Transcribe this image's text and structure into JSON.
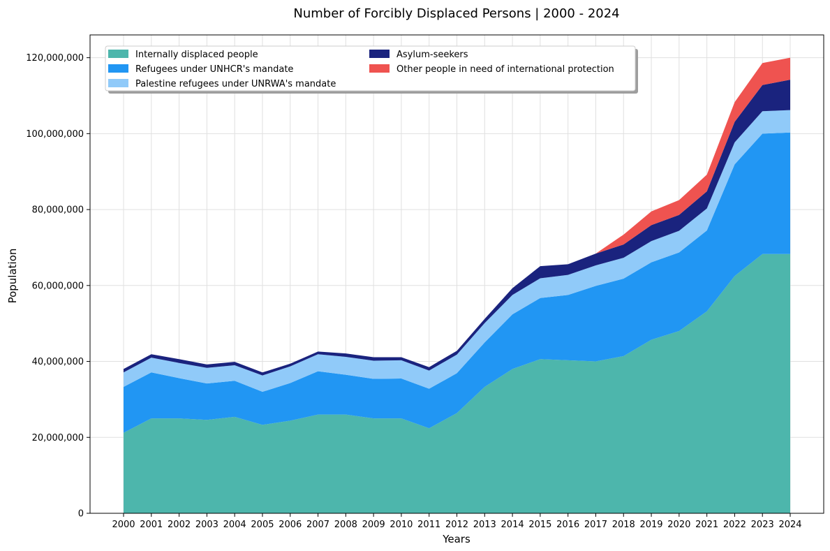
{
  "chart_data": {
    "type": "area",
    "stacked": true,
    "title": "Number of Forcibly Displaced Persons | 2000 - 2024",
    "xlabel": "Years",
    "ylabel": "Population",
    "ylim": [
      0,
      126000000
    ],
    "yticks": [
      0,
      20000000,
      40000000,
      60000000,
      80000000,
      100000000,
      120000000
    ],
    "ytick_labels": [
      "0",
      "20,000,000",
      "40,000,000",
      "60,000,000",
      "80,000,000",
      "100,000,000",
      "120,000,000"
    ],
    "grid": true,
    "legend_position": "top-left",
    "x": [
      "2000",
      "2001",
      "2002",
      "2003",
      "2004",
      "2005",
      "2006",
      "2007",
      "2008",
      "2009",
      "2010",
      "2011",
      "2012",
      "2013",
      "2014",
      "2015",
      "2016",
      "2017",
      "2018",
      "2019",
      "2020",
      "2021",
      "2022",
      "2023",
      "2024"
    ],
    "series": [
      {
        "name": "Internally displaced people",
        "color": "#4db6ac",
        "values": [
          21200000,
          25000000,
          25000000,
          24600000,
          25400000,
          23300000,
          24400000,
          26000000,
          26000000,
          25000000,
          25000000,
          22400000,
          26400000,
          33300000,
          38000000,
          40600000,
          40300000,
          40000000,
          41400000,
          45700000,
          48000000,
          53200000,
          62500000,
          68300000,
          68300000
        ]
      },
      {
        "name": "Refugees under UNHCR's mandate",
        "color": "#2196f3",
        "values": [
          12100000,
          12100000,
          10600000,
          9600000,
          9500000,
          8700000,
          9900000,
          11400000,
          10500000,
          10400000,
          10500000,
          10400000,
          10500000,
          11700000,
          14400000,
          16100000,
          17200000,
          19900000,
          20400000,
          20400000,
          20700000,
          21300000,
          29400000,
          31700000,
          32000000
        ]
      },
      {
        "name": "Palestine refugees under UNRWA's mandate",
        "color": "#90caf9",
        "values": [
          3800000,
          3900000,
          4000000,
          4100000,
          4100000,
          4300000,
          4400000,
          4500000,
          4700000,
          4800000,
          4800000,
          4800000,
          4900000,
          5100000,
          5100000,
          5200000,
          5300000,
          5400000,
          5500000,
          5600000,
          5700000,
          5800000,
          5800000,
          5900000,
          5900000
        ]
      },
      {
        "name": "Asylum-seekers",
        "color": "#1a237e",
        "values": [
          900000,
          900000,
          1000000,
          900000,
          900000,
          800000,
          700000,
          700000,
          900000,
          900000,
          800000,
          900000,
          1000000,
          1100000,
          1800000,
          3200000,
          2800000,
          3100000,
          3500000,
          4200000,
          4200000,
          4500000,
          5400000,
          6900000,
          8000000
        ]
      },
      {
        "name": "Other people in need of international protection",
        "color": "#ef5350",
        "values": [
          0,
          0,
          0,
          0,
          0,
          0,
          0,
          0,
          0,
          0,
          0,
          0,
          0,
          0,
          0,
          0,
          0,
          0,
          2600000,
          3600000,
          3900000,
          4400000,
          5200000,
          5800000,
          5800000
        ]
      }
    ]
  }
}
